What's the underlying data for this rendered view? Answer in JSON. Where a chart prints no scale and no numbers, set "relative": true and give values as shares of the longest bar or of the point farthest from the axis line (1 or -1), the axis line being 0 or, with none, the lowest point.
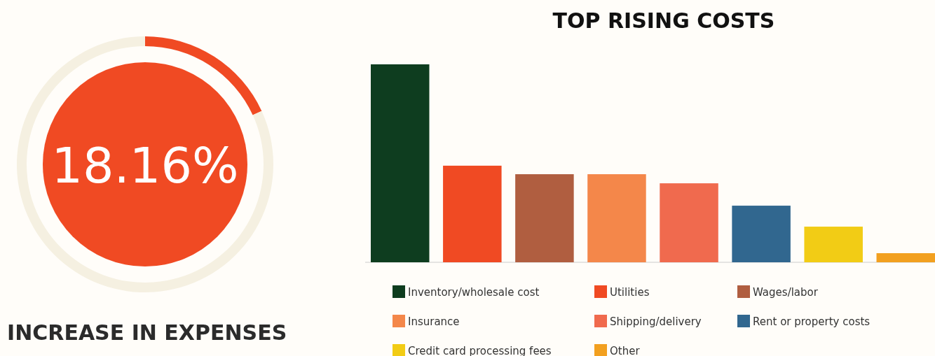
{
  "chart_data": [
    {
      "type": "donut",
      "title": "INCREASE IN EXPENSES",
      "categories": [
        null,
        null
      ],
      "values": [
        18.16,
        81.84
      ],
      "colors": [
        "#f04a23",
        "#f5f0e1"
      ],
      "annotations": [
        "18.16%"
      ]
    },
    {
      "type": "bar",
      "title": "TOP RISING COSTS",
      "relative": true,
      "legend": "bottom",
      "categories": [
        null
      ],
      "series": [
        {
          "name": "Inventory/wholesale cost",
          "color": "#0e3d1f",
          "values": [
            1
          ]
        },
        {
          "name": "Utilities",
          "color": "#f04a23",
          "values": [
            0.488
          ]
        },
        {
          "name": "Wages/labor",
          "color": "#b05e40",
          "values": [
            0.445
          ]
        },
        {
          "name": "Insurance",
          "color": "#f4874a",
          "values": [
            0.445
          ]
        },
        {
          "name": "Shipping/delivery",
          "color": "#f06a4e",
          "values": [
            0.399
          ]
        },
        {
          "name": "Rent or property costs",
          "color": "#31678f",
          "values": [
            0.286
          ]
        },
        {
          "name": "Credit card processing fees",
          "color": "#f2cc15",
          "values": [
            0.18
          ]
        },
        {
          "name": "Other",
          "color": "#f2a020",
          "values": [
            0.046
          ]
        }
      ]
    }
  ]
}
